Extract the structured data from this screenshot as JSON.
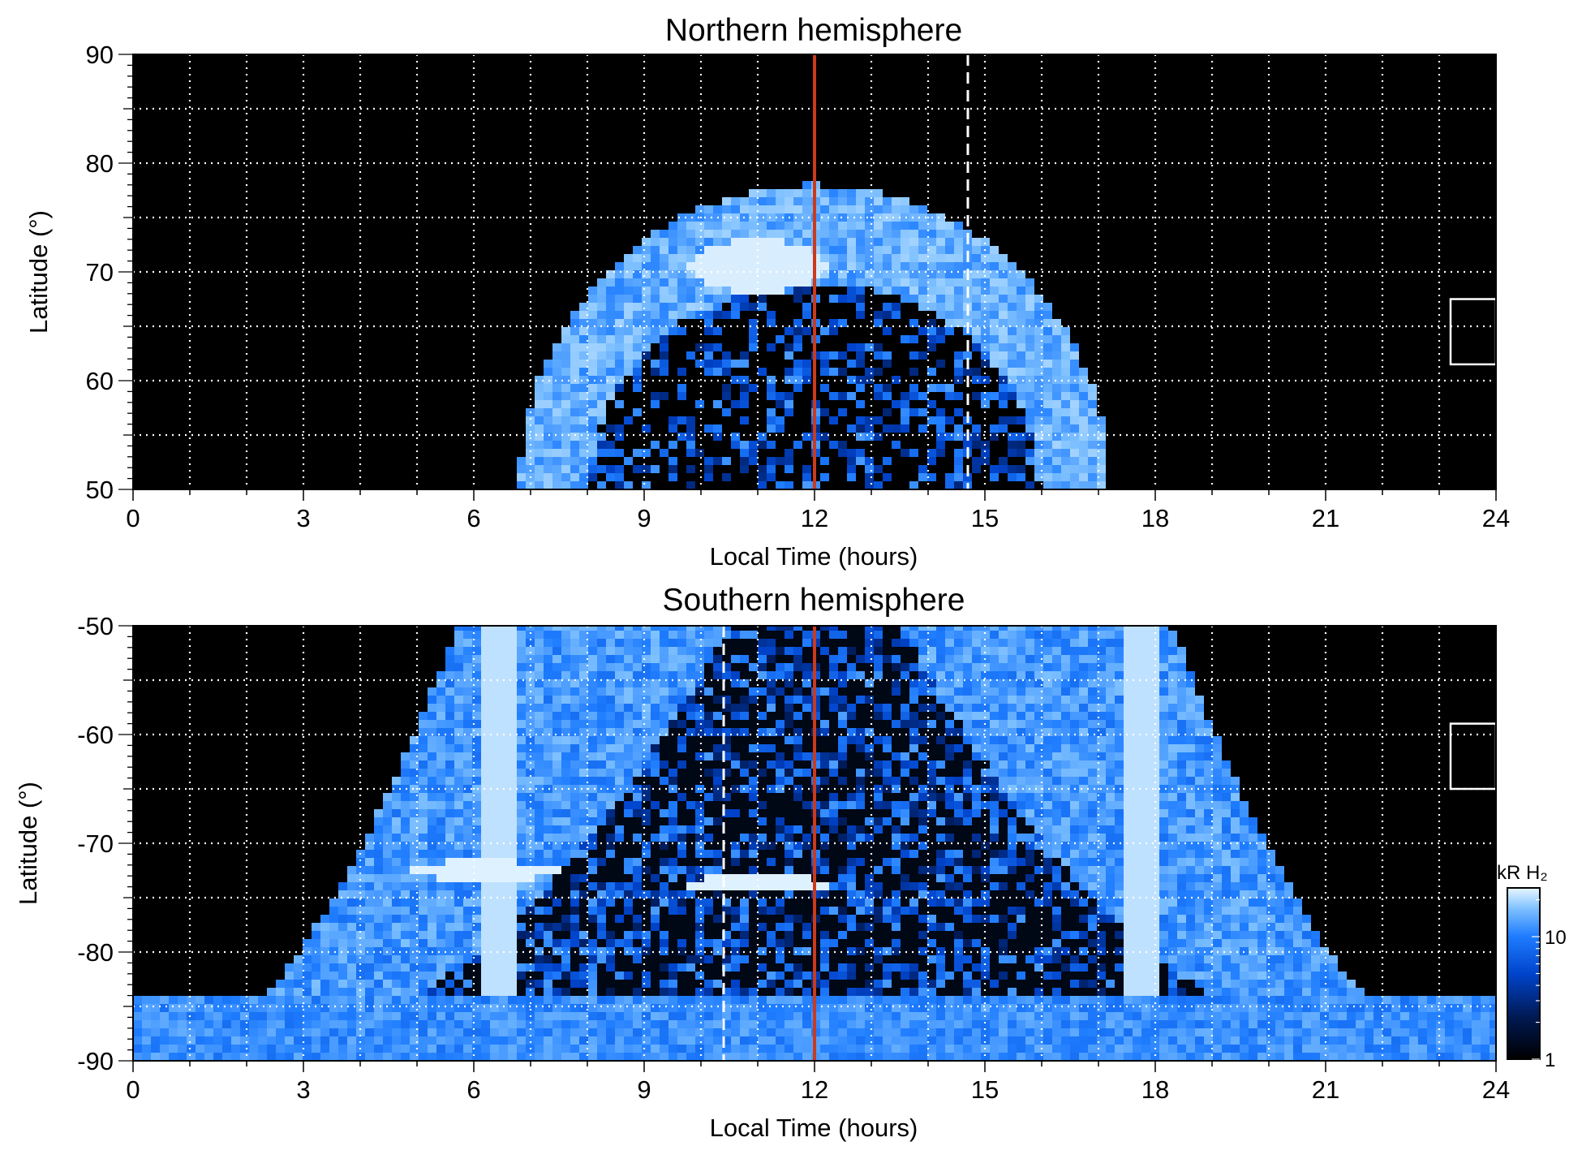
{
  "figure": {
    "colors": {
      "background": "#000000",
      "grid": "#ffffff",
      "noon_line": "#cc3a1a",
      "cmap": [
        "#000000",
        "#001a55",
        "#0044cc",
        "#1f7dff",
        "#7fc1ff",
        "#e8f6ff"
      ]
    },
    "colorbar": {
      "title": "kR H₂",
      "ticks": [
        "1",
        "10"
      ],
      "range": [
        1,
        25
      ],
      "scale": "log"
    }
  },
  "chart_data": [
    {
      "type": "heatmap",
      "title": "Northern hemisphere",
      "xlabel": "Local Time (hours)",
      "ylabel": "Latitude (°)",
      "xlim": [
        0,
        24
      ],
      "ylim": [
        50,
        90
      ],
      "xticks": [
        "0",
        "3",
        "6",
        "9",
        "12",
        "15",
        "18",
        "21",
        "24"
      ],
      "yticks": [
        "50",
        "60",
        "70",
        "80",
        "90"
      ],
      "grid": true,
      "reference_lines": [
        {
          "x": 12,
          "style": "solid",
          "color": "red"
        },
        {
          "x": 14.7,
          "style": "dashed",
          "color": "white"
        }
      ],
      "auroral_oval": {
        "lt_range": [
          7.0,
          17.4
        ],
        "outer_boundary_lat_at_noon": 78,
        "inner_boundary_lat_at_noon": 69,
        "peak_kR": 25,
        "bright_spot": {
          "lt": 11.0,
          "lat": 70.5
        }
      },
      "box": {
        "lt_range": [
          23.2,
          24
        ],
        "lat_range": [
          61.5,
          67.5
        ]
      }
    },
    {
      "type": "heatmap",
      "title": "Southern hemisphere",
      "xlabel": "Local Time (hours)",
      "ylabel": "Latitude (°)",
      "xlim": [
        0,
        24
      ],
      "ylim": [
        -90,
        -50
      ],
      "xticks": [
        "0",
        "3",
        "6",
        "9",
        "12",
        "15",
        "18",
        "21",
        "24"
      ],
      "yticks": [
        "-90",
        "-80",
        "-70",
        "-60",
        "-50"
      ],
      "grid": true,
      "reference_lines": [
        {
          "x": 12,
          "style": "solid",
          "color": "red"
        },
        {
          "x": 10.4,
          "style": "dashed",
          "color": "white"
        }
      ],
      "auroral_oval": {
        "dawn_arc_lt": 6.5,
        "dusk_arc_lt": 17.7,
        "polar_band_lat": [
          -90,
          -84
        ],
        "peak_kR": 25,
        "bright_spots": [
          {
            "lt": 6.2,
            "lat": -72.5
          },
          {
            "lt": 11.0,
            "lat": -73.8
          }
        ]
      },
      "box": {
        "lt_range": [
          23.2,
          24
        ],
        "lat_range": [
          -65,
          -59
        ]
      }
    }
  ]
}
